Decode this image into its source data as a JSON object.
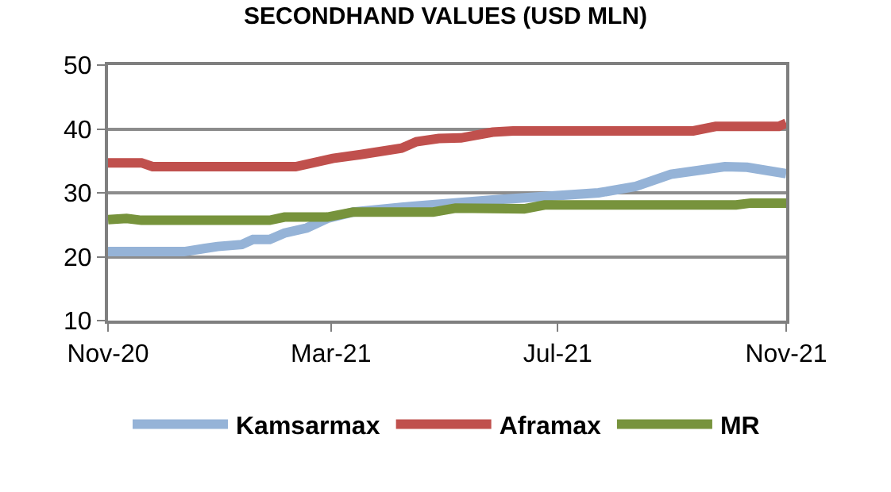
{
  "chart_data": {
    "type": "line",
    "title": "SECONDHAND VALUES (USD MLN)",
    "xlim": [
      "2020-11-01",
      "2021-11-01"
    ],
    "xticks": [
      {
        "value": "2020-11-01",
        "label": "Nov-20"
      },
      {
        "value": "2021-03-01",
        "label": "Mar-21"
      },
      {
        "value": "2021-07-01",
        "label": "Jul-21"
      },
      {
        "value": "2021-11-01",
        "label": "Nov-21"
      }
    ],
    "ylim": [
      10,
      50
    ],
    "yticks": [
      10,
      20,
      30,
      40,
      50
    ],
    "grid": "y",
    "legend": "bottom",
    "marker": "none",
    "line_style": "solid",
    "series": [
      {
        "name": "Kamsarmax",
        "color": "#95b3d7",
        "x": [
          "2020-11-01",
          "2020-12-12",
          "2020-12-30",
          "2021-01-12",
          "2021-01-18",
          "2021-01-27",
          "2021-02-04",
          "2021-02-16",
          "2021-02-27",
          "2021-03-13",
          "2021-04-14",
          "2021-05-27",
          "2021-06-07",
          "2021-07-23",
          "2021-08-12",
          "2021-08-31",
          "2021-09-29",
          "2021-10-11",
          "2021-11-01"
        ],
        "values": [
          20.8,
          20.8,
          21.6,
          21.9,
          22.7,
          22.7,
          23.7,
          24.5,
          26.0,
          27.0,
          27.9,
          28.9,
          29.1,
          30.0,
          31.0,
          32.9,
          34.1,
          34.0,
          33.0
        ]
      },
      {
        "name": "Aframax",
        "color": "#c0504d",
        "x": [
          "2020-11-01",
          "2020-11-19",
          "2020-11-25",
          "2021-02-10",
          "2021-03-02",
          "2021-03-17",
          "2021-04-08",
          "2021-04-16",
          "2021-04-28",
          "2021-05-10",
          "2021-05-27",
          "2021-06-07",
          "2021-09-12",
          "2021-09-24",
          "2021-10-28",
          "2021-11-01"
        ],
        "values": [
          34.7,
          34.7,
          34.1,
          34.1,
          35.4,
          36.0,
          37.0,
          38.0,
          38.5,
          38.6,
          39.5,
          39.7,
          39.7,
          40.4,
          40.4,
          40.9
        ]
      },
      {
        "name": "MR",
        "color": "#77933c",
        "x": [
          "2020-11-01",
          "2020-11-11",
          "2020-11-19",
          "2021-01-27",
          "2021-02-04",
          "2021-02-27",
          "2021-03-13",
          "2021-04-25",
          "2021-05-07",
          "2021-06-13",
          "2021-06-24",
          "2021-10-05",
          "2021-10-13",
          "2021-11-01"
        ],
        "values": [
          25.8,
          26.0,
          25.7,
          25.7,
          26.2,
          26.2,
          27.0,
          27.0,
          27.6,
          27.5,
          28.1,
          28.1,
          28.4,
          28.4
        ]
      }
    ]
  }
}
